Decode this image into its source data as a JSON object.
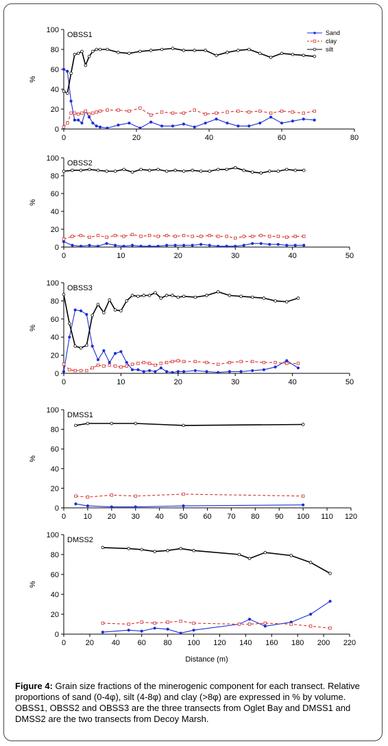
{
  "colors": {
    "sand": "#1a2ed6",
    "clay": "#d42a2a",
    "silt": "#000000"
  },
  "legend": {
    "sand": "Sand",
    "clay": "clay",
    "silt": "silt"
  },
  "caption": {
    "label": "Figure 4:",
    "text": " Grain size fractions of the minerogenic component for each transect. Relative proportions of sand (0-4φ), silt (4-8φ) and clay (>8φ) are expressed in % by volume. OBSS1, OBSS2 and OBSS3 are the three transects from Oglet Bay and DMSS1 and DMSS2 are the two transects from Decoy Marsh."
  },
  "chart_data": [
    {
      "type": "line",
      "title": "OBSS1",
      "ylabel": "%",
      "xlabel": "",
      "xlim": [
        0,
        80
      ],
      "ylim": [
        0,
        100
      ],
      "xticks": [
        0,
        20,
        40,
        60,
        80
      ],
      "yticks": [
        0,
        20,
        40,
        60,
        80,
        100
      ],
      "legend": true,
      "series": [
        {
          "name": "Sand",
          "key": "sand",
          "x": [
            0,
            1,
            2,
            3,
            4,
            5,
            6,
            7,
            8,
            9,
            10,
            12,
            15,
            18,
            21,
            24,
            27,
            30,
            33,
            36,
            39,
            42,
            45,
            48,
            51,
            54,
            57,
            60,
            63,
            66,
            69
          ],
          "y": [
            60,
            58,
            28,
            9,
            9,
            6,
            18,
            12,
            6,
            3,
            2,
            1,
            4,
            6,
            1,
            7,
            3,
            3,
            5,
            2,
            6,
            10,
            6,
            3,
            3,
            6,
            12,
            6,
            8,
            10,
            9
          ]
        },
        {
          "name": "clay",
          "key": "clay",
          "x": [
            0,
            1,
            2,
            3,
            4,
            5,
            6,
            7,
            8,
            9,
            10,
            12,
            15,
            18,
            21,
            24,
            27,
            30,
            33,
            36,
            39,
            42,
            45,
            48,
            51,
            54,
            57,
            60,
            63,
            66,
            69
          ],
          "y": [
            2,
            6,
            16,
            16,
            15,
            16,
            18,
            15,
            16,
            17,
            18,
            19,
            19,
            18,
            21,
            14,
            17,
            16,
            16,
            19,
            15,
            16,
            17,
            18,
            17,
            18,
            16,
            18,
            17,
            16,
            18
          ]
        },
        {
          "name": "silt",
          "key": "silt",
          "x": [
            0,
            1,
            2,
            3,
            4,
            5,
            6,
            7,
            8,
            9,
            10,
            12,
            15,
            18,
            21,
            24,
            27,
            30,
            33,
            36,
            39,
            42,
            45,
            48,
            51,
            54,
            57,
            60,
            63,
            66,
            69
          ],
          "y": [
            38,
            36,
            56,
            75,
            76,
            78,
            64,
            73,
            78,
            80,
            80,
            80,
            77,
            76,
            78,
            79,
            80,
            81,
            79,
            79,
            79,
            74,
            77,
            79,
            80,
            76,
            72,
            76,
            75,
            74,
            73
          ]
        }
      ]
    },
    {
      "type": "line",
      "title": "OBSS2",
      "ylabel": "%",
      "xlabel": "",
      "xlim": [
        0,
        50
      ],
      "ylim": [
        0,
        100
      ],
      "xticks": [
        0,
        10,
        20,
        30,
        40,
        50
      ],
      "yticks": [
        0,
        20,
        40,
        60,
        80,
        100
      ],
      "legend": false,
      "series": [
        {
          "name": "Sand",
          "key": "sand",
          "x": [
            0,
            1.5,
            3,
            4.5,
            6,
            7.5,
            9,
            10.5,
            12,
            13.5,
            15,
            16.5,
            18,
            19.5,
            21,
            22.5,
            24,
            25.5,
            27,
            28.5,
            30,
            31.5,
            33,
            34.5,
            36,
            37.5,
            39,
            40.5,
            42
          ],
          "y": [
            6,
            2,
            1,
            2,
            1,
            4,
            2,
            1,
            2,
            1,
            1,
            1,
            2,
            2,
            2,
            2,
            3,
            2,
            1,
            1,
            1,
            2,
            4,
            4,
            3,
            3,
            2,
            2,
            2
          ]
        },
        {
          "name": "clay",
          "key": "clay",
          "x": [
            0,
            1.5,
            3,
            4.5,
            6,
            7.5,
            9,
            10.5,
            12,
            13.5,
            15,
            16.5,
            18,
            19.5,
            21,
            22.5,
            24,
            25.5,
            27,
            28.5,
            30,
            31.5,
            33,
            34.5,
            36,
            37.5,
            39,
            40.5,
            42
          ],
          "y": [
            9,
            12,
            13,
            11,
            13,
            11,
            13,
            12,
            14,
            12,
            13,
            12,
            13,
            12,
            13,
            12,
            12,
            13,
            12,
            12,
            10,
            12,
            12,
            13,
            12,
            12,
            11,
            12,
            12
          ]
        },
        {
          "name": "silt",
          "key": "silt",
          "x": [
            0,
            1.5,
            3,
            4.5,
            6,
            7.5,
            9,
            10.5,
            12,
            13.5,
            15,
            16.5,
            18,
            19.5,
            21,
            22.5,
            24,
            25.5,
            27,
            28.5,
            30,
            31.5,
            33,
            34.5,
            36,
            37.5,
            39,
            40.5,
            42
          ],
          "y": [
            85,
            86,
            86,
            87,
            86,
            85,
            85,
            87,
            84,
            87,
            86,
            87,
            85,
            86,
            85,
            86,
            85,
            85,
            87,
            87,
            89,
            86,
            84,
            83,
            85,
            85,
            87,
            86,
            86
          ]
        }
      ]
    },
    {
      "type": "line",
      "title": "OBSS3",
      "ylabel": "%",
      "xlabel": "",
      "xlim": [
        0,
        50
      ],
      "ylim": [
        0,
        100
      ],
      "xticks": [
        0,
        10,
        20,
        30,
        40,
        50
      ],
      "yticks": [
        0,
        20,
        40,
        60,
        80,
        100
      ],
      "legend": false,
      "series": [
        {
          "name": "Sand",
          "key": "sand",
          "x": [
            0,
            1,
            2,
            3,
            4,
            5,
            6,
            7,
            8,
            9,
            10,
            11,
            12,
            13,
            14,
            15,
            16,
            17,
            18,
            19,
            20,
            21,
            23,
            25,
            27,
            29,
            31,
            33,
            35,
            37,
            39,
            41
          ],
          "y": [
            2,
            40,
            70,
            69,
            65,
            30,
            15,
            25,
            12,
            22,
            24,
            12,
            4,
            4,
            2,
            3,
            2,
            6,
            2,
            1,
            2,
            2,
            3,
            2,
            1,
            2,
            2,
            3,
            4,
            7,
            14,
            6
          ]
        },
        {
          "name": "clay",
          "key": "clay",
          "x": [
            0,
            1,
            2,
            3,
            4,
            5,
            6,
            7,
            8,
            9,
            10,
            11,
            12,
            13,
            14,
            15,
            16,
            17,
            18,
            19,
            20,
            21,
            23,
            25,
            27,
            29,
            31,
            33,
            35,
            37,
            39,
            41
          ],
          "y": [
            10,
            4,
            3,
            3,
            3,
            6,
            9,
            8,
            9,
            8,
            7,
            8,
            10,
            11,
            12,
            11,
            9,
            11,
            12,
            13,
            14,
            13,
            13,
            12,
            10,
            12,
            13,
            13,
            12,
            12,
            11,
            11
          ]
        },
        {
          "name": "silt",
          "key": "silt",
          "x": [
            0,
            1,
            2,
            3,
            4,
            5,
            6,
            7,
            8,
            9,
            10,
            11,
            12,
            13,
            14,
            15,
            16,
            17,
            18,
            19,
            20,
            21,
            23,
            25,
            27,
            29,
            31,
            33,
            35,
            37,
            39,
            41
          ],
          "y": [
            87,
            55,
            30,
            28,
            31,
            64,
            76,
            67,
            81,
            70,
            69,
            80,
            86,
            85,
            86,
            86,
            89,
            83,
            86,
            86,
            84,
            85,
            84,
            86,
            90,
            86,
            85,
            84,
            83,
            80,
            79,
            83
          ]
        }
      ]
    },
    {
      "type": "line",
      "title": "DMSS1",
      "ylabel": "%",
      "xlabel": "",
      "xlim": [
        0,
        120
      ],
      "ylim": [
        0,
        100
      ],
      "xticks": [
        0,
        10,
        20,
        30,
        40,
        50,
        60,
        70,
        80,
        90,
        100,
        110,
        120
      ],
      "yticks": [
        0,
        20,
        40,
        60,
        80,
        100
      ],
      "legend": false,
      "series": [
        {
          "name": "Sand",
          "key": "sand",
          "x": [
            5,
            10,
            20,
            30,
            50,
            100
          ],
          "y": [
            4,
            2,
            1,
            1,
            2,
            3
          ]
        },
        {
          "name": "clay",
          "key": "clay",
          "x": [
            5,
            10,
            20,
            30,
            50,
            100
          ],
          "y": [
            12,
            11,
            13,
            12,
            14,
            12
          ]
        },
        {
          "name": "silt",
          "key": "silt",
          "x": [
            5,
            10,
            20,
            30,
            50,
            100
          ],
          "y": [
            84,
            86,
            86,
            86,
            84,
            85
          ]
        }
      ]
    },
    {
      "type": "line",
      "title": "DMSS2",
      "ylabel": "%",
      "xlabel": "Distance (m)",
      "xlim": [
        0,
        220
      ],
      "ylim": [
        0,
        100
      ],
      "xticks": [
        0,
        20,
        40,
        60,
        80,
        100,
        120,
        140,
        160,
        180,
        200,
        220
      ],
      "yticks": [
        0,
        20,
        40,
        60,
        80,
        100
      ],
      "legend": false,
      "series": [
        {
          "name": "Sand",
          "key": "sand",
          "x": [
            30,
            50,
            60,
            70,
            80,
            90,
            100,
            135,
            143,
            155,
            175,
            190,
            205
          ],
          "y": [
            2,
            4,
            3,
            6,
            5,
            1,
            4,
            10,
            15,
            8,
            12,
            20,
            33
          ]
        },
        {
          "name": "clay",
          "key": "clay",
          "x": [
            30,
            50,
            60,
            70,
            80,
            90,
            100,
            135,
            143,
            155,
            175,
            190,
            205
          ],
          "y": [
            11,
            10,
            12,
            11,
            12,
            13,
            11,
            10,
            10,
            11,
            10,
            8,
            6
          ]
        },
        {
          "name": "silt",
          "key": "silt",
          "x": [
            30,
            50,
            60,
            70,
            80,
            90,
            100,
            135,
            143,
            155,
            175,
            190,
            205
          ],
          "y": [
            87,
            86,
            85,
            83,
            84,
            86,
            84,
            80,
            76,
            82,
            79,
            72,
            61
          ]
        }
      ]
    }
  ]
}
